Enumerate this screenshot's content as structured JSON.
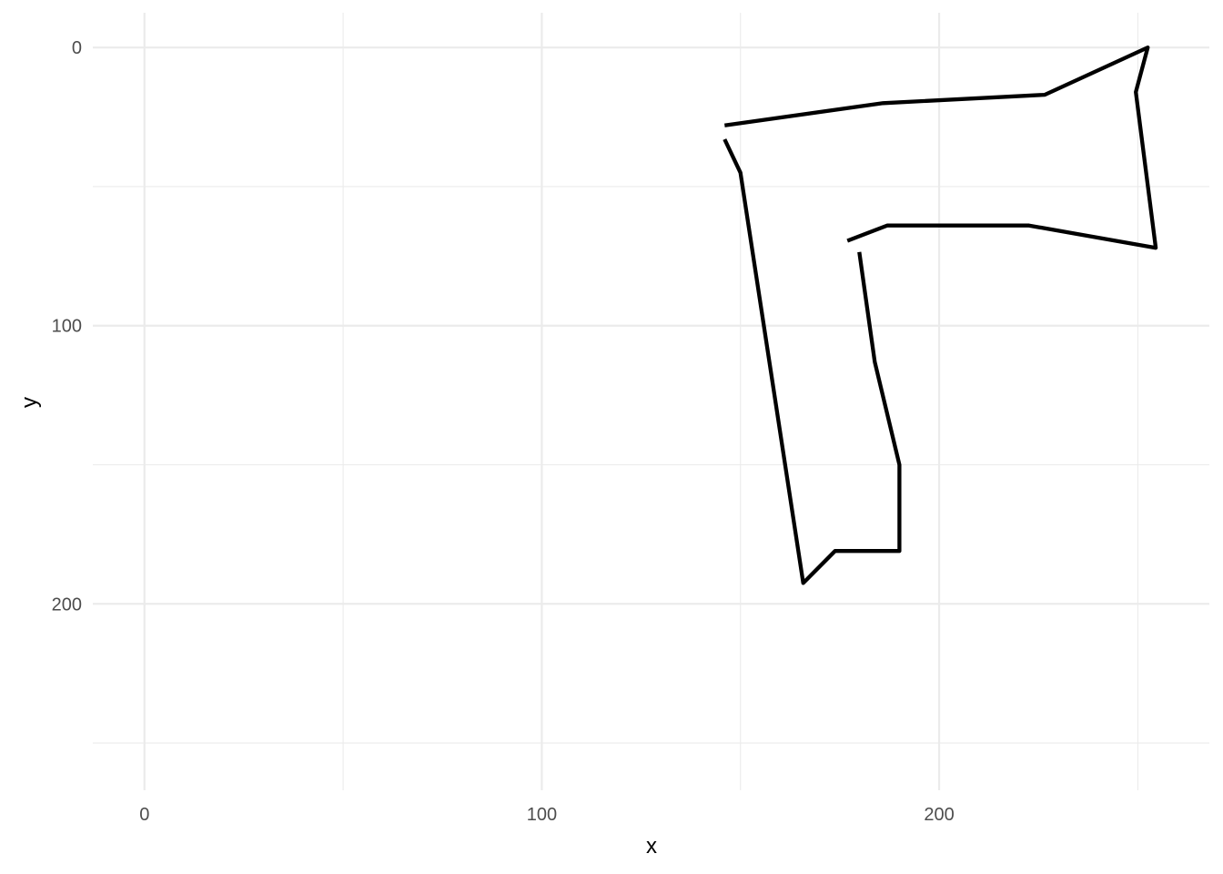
{
  "chart_data": {
    "type": "line",
    "title": "",
    "xlabel": "x",
    "ylabel": "y",
    "xlim": [
      -13,
      268
    ],
    "ylim": [
      -12.5,
      267
    ],
    "y_reversed": true,
    "grid": true,
    "x_major_ticks": [
      0,
      100,
      200
    ],
    "x_minor_ticks": [
      50,
      150,
      250
    ],
    "y_major_ticks": [
      0,
      100,
      200
    ],
    "y_minor_ticks": [
      50,
      150,
      250
    ],
    "x_tick_labels": [
      "0",
      "100",
      "200"
    ],
    "y_tick_labels": [
      "0",
      "100",
      "200"
    ],
    "line_color": "#000000",
    "series": [
      {
        "points": [
          [
            146,
            28
          ],
          [
            185.9,
            20
          ],
          [
            226.6,
            17
          ],
          [
            252.5,
            0
          ],
          [
            249.5,
            16
          ],
          [
            254.5,
            72
          ],
          [
            222.6,
            64
          ],
          [
            186.9,
            64
          ],
          [
            176.9,
            69.5
          ]
        ]
      },
      {
        "points": [
          [
            146,
            33
          ],
          [
            150,
            45
          ],
          [
            165.8,
            192.5
          ],
          [
            173.8,
            181
          ],
          [
            190,
            181
          ],
          [
            190,
            150
          ],
          [
            183.8,
            113
          ],
          [
            179.9,
            73.5
          ]
        ]
      }
    ]
  }
}
